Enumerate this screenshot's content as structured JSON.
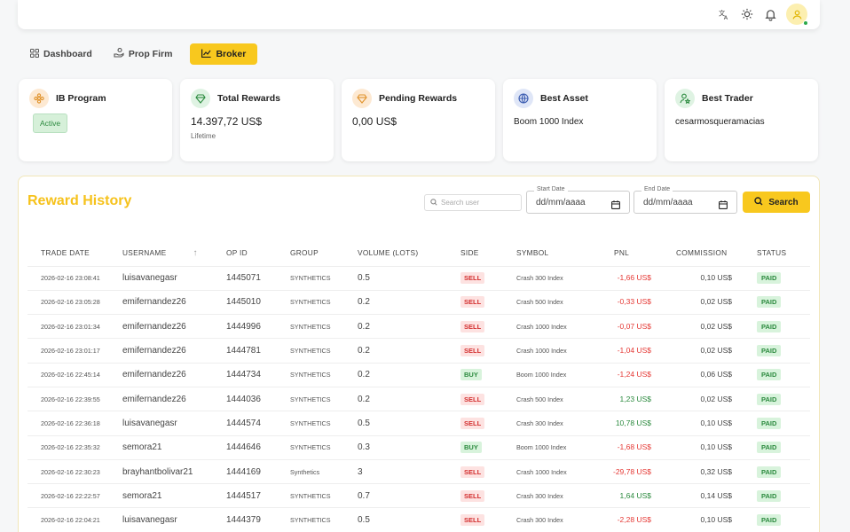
{
  "nav": {
    "tabs": [
      {
        "label": "Dashboard",
        "icon": "grid-icon",
        "active": false
      },
      {
        "label": "Prop Firm",
        "icon": "hand-coin-icon",
        "active": false
      },
      {
        "label": "Broker",
        "icon": "chart-line-icon",
        "active": true
      }
    ]
  },
  "cards": {
    "ib_program": {
      "title": "IB Program",
      "badge": "Active"
    },
    "total_rewards": {
      "title": "Total Rewards",
      "value": "14.397,72 US$",
      "sub": "Lifetime"
    },
    "pending_rewards": {
      "title": "Pending Rewards",
      "value": "0,00 US$"
    },
    "best_asset": {
      "title": "Best Asset",
      "value": "Boom 1000 Index"
    },
    "best_trader": {
      "title": "Best Trader",
      "value": "cesarmosqueramacias"
    }
  },
  "reward_history": {
    "title": "Reward History",
    "search_placeholder": "Search user",
    "start_date": {
      "label": "Start Date",
      "value": "dd/mm/aaaa"
    },
    "end_date": {
      "label": "End Date",
      "value": "dd/mm/aaaa"
    },
    "search_button": "Search",
    "columns": [
      "TRADE DATE",
      "USERNAME",
      "OP ID",
      "GROUP",
      "VOLUME (LOTS)",
      "SIDE",
      "SYMBOL",
      "PNL",
      "COMMISSION",
      "STATUS"
    ],
    "rows": [
      {
        "date": "2026-02-16 23:08:41",
        "user": "luisavanegasr",
        "op": "1445071",
        "group": "SYNTHETICS",
        "vol": "0.5",
        "side": "SELL",
        "symbol": "Crash 300 Index",
        "pnl": "-1,66 US$",
        "comm": "0,10 US$",
        "status": "PAID"
      },
      {
        "date": "2026-02-16 23:05:28",
        "user": "emifernandez26",
        "op": "1445010",
        "group": "SYNTHETICS",
        "vol": "0.2",
        "side": "SELL",
        "symbol": "Crash 500 Index",
        "pnl": "-0,33 US$",
        "comm": "0,02 US$",
        "status": "PAID"
      },
      {
        "date": "2026-02-16 23:01:34",
        "user": "emifernandez26",
        "op": "1444996",
        "group": "SYNTHETICS",
        "vol": "0.2",
        "side": "SELL",
        "symbol": "Crash 1000 Index",
        "pnl": "-0,07 US$",
        "comm": "0,02 US$",
        "status": "PAID"
      },
      {
        "date": "2026-02-16 23:01:17",
        "user": "emifernandez26",
        "op": "1444781",
        "group": "SYNTHETICS",
        "vol": "0.2",
        "side": "SELL",
        "symbol": "Crash 1000 Index",
        "pnl": "-1,04 US$",
        "comm": "0,02 US$",
        "status": "PAID"
      },
      {
        "date": "2026-02-16 22:45:14",
        "user": "emifernandez26",
        "op": "1444734",
        "group": "SYNTHETICS",
        "vol": "0.2",
        "side": "BUY",
        "symbol": "Boom 1000 Index",
        "pnl": "-1,24 US$",
        "comm": "0,06 US$",
        "status": "PAID"
      },
      {
        "date": "2026-02-16 22:39:55",
        "user": "emifernandez26",
        "op": "1444036",
        "group": "SYNTHETICS",
        "vol": "0.2",
        "side": "SELL",
        "symbol": "Crash 500 Index",
        "pnl": "1,23 US$",
        "comm": "0,02 US$",
        "status": "PAID"
      },
      {
        "date": "2026-02-16 22:36:18",
        "user": "luisavanegasr",
        "op": "1444574",
        "group": "SYNTHETICS",
        "vol": "0.5",
        "side": "SELL",
        "symbol": "Crash 300 Index",
        "pnl": "10,78 US$",
        "comm": "0,10 US$",
        "status": "PAID"
      },
      {
        "date": "2026-02-16 22:35:32",
        "user": "semora21",
        "op": "1444646",
        "group": "SYNTHETICS",
        "vol": "0.3",
        "side": "BUY",
        "symbol": "Boom 1000 Index",
        "pnl": "-1,68 US$",
        "comm": "0,10 US$",
        "status": "PAID"
      },
      {
        "date": "2026-02-16 22:30:23",
        "user": "brayhantbolivar21",
        "op": "1444169",
        "group": "Synthetics",
        "vol": "3",
        "side": "SELL",
        "symbol": "Crash 1000 Index",
        "pnl": "-29,78 US$",
        "comm": "0,32 US$",
        "status": "PAID"
      },
      {
        "date": "2026-02-16 22:22:57",
        "user": "semora21",
        "op": "1444517",
        "group": "SYNTHETICS",
        "vol": "0.7",
        "side": "SELL",
        "symbol": "Crash 300 Index",
        "pnl": "1,64 US$",
        "comm": "0,14 US$",
        "status": "PAID"
      },
      {
        "date": "2026-02-16 22:04:21",
        "user": "luisavanegasr",
        "op": "1444379",
        "group": "SYNTHETICS",
        "vol": "0.5",
        "side": "SELL",
        "symbol": "Crash 300 Index",
        "pnl": "-2,28 US$",
        "comm": "0,10 US$",
        "status": "PAID"
      }
    ]
  },
  "colors": {
    "accent": "#f8c81e",
    "title": "#f6c21c",
    "negative": "#e53935",
    "positive": "#2b8a3e"
  }
}
